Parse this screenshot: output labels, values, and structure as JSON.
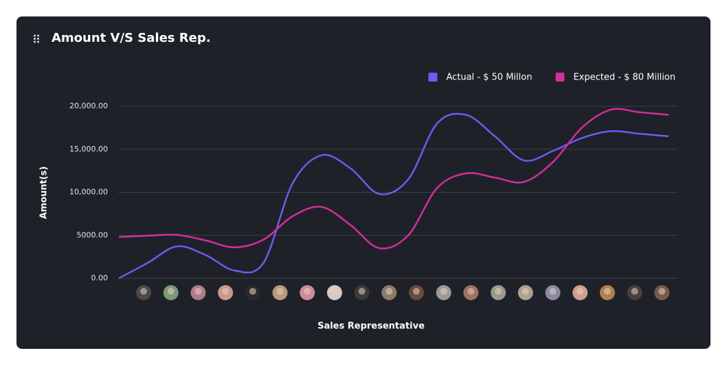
{
  "chart_data": {
    "type": "line",
    "title": "Amount V/S Sales Rep.",
    "x_label": "Sales Representative",
    "y_label": "Amount(s)",
    "categories": [
      null,
      null,
      null,
      null,
      null,
      null,
      null,
      null,
      null,
      null,
      null,
      null,
      null,
      null,
      null,
      null,
      null,
      null,
      null,
      null
    ],
    "series": [
      {
        "name": "Actual - $ 50 Millon",
        "color": "#6c5cf0",
        "values": [
          0,
          1800,
          3700,
          2700,
          900,
          1800,
          11000,
          14300,
          12800,
          9800,
          11500,
          18000,
          19000,
          16500,
          13700,
          14800,
          16300,
          17100,
          16800,
          16500
        ]
      },
      {
        "name": "Expected - $ 80 Million",
        "color": "#d22f9c",
        "values": [
          4800,
          4950,
          5050,
          4400,
          3600,
          4500,
          7200,
          8300,
          6200,
          3500,
          5000,
          10500,
          12200,
          11700,
          11200,
          13500,
          17500,
          19600,
          19300,
          19000
        ]
      }
    ],
    "ylim": [
      0,
      20000
    ],
    "yticks": [
      {
        "value": 0,
        "label": "0.00"
      },
      {
        "value": 5000,
        "label": "5000.00"
      },
      {
        "value": 10000,
        "label": "10,000.00"
      },
      {
        "value": 15000,
        "label": "15,000.00"
      },
      {
        "value": 20000,
        "label": "20,000.00"
      }
    ],
    "grid": true,
    "legend": "top-right"
  }
}
